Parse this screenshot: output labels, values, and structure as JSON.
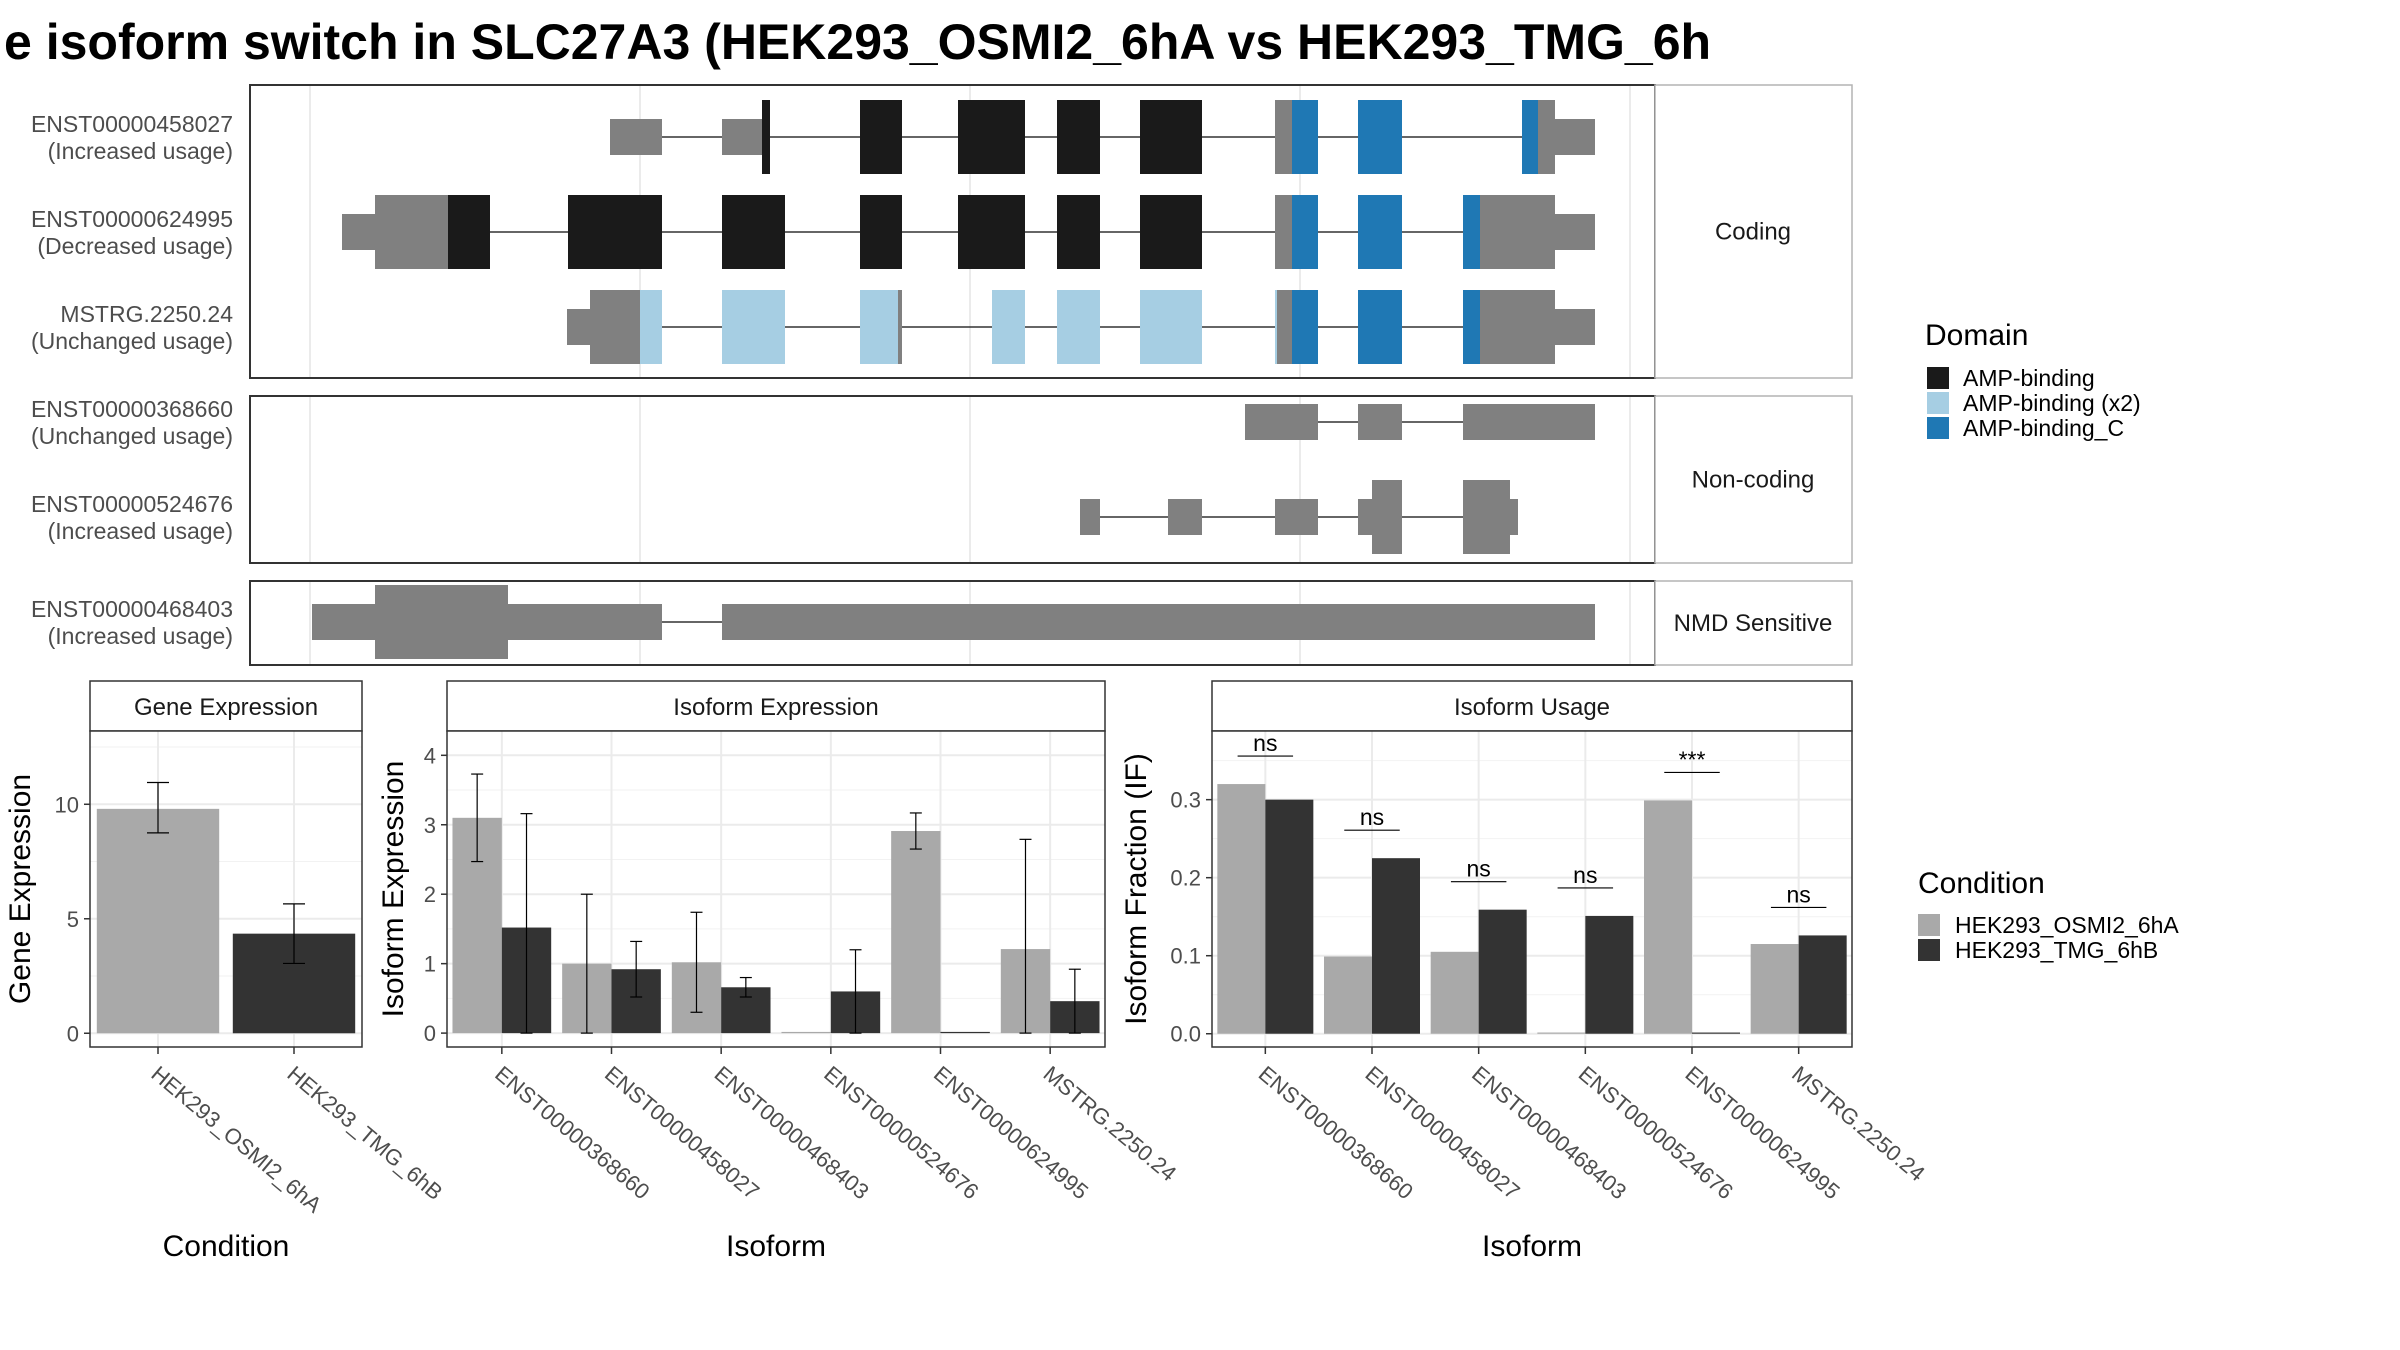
{
  "title": "e isoform switch in SLC27A3 (HEK293_OSMI2_6hA vs HEK293_TMG_6h",
  "colors": {
    "domain_amp_binding": "#1a1a1a",
    "domain_amp_binding_x2": "#a6cee3",
    "domain_amp_binding_c": "#1f78b4",
    "no_domain": "#808080",
    "condition_a": "#a9a9a9",
    "condition_b": "#333333"
  },
  "transcript_panel": {
    "groups": [
      {
        "label": "Coding",
        "transcripts": [
          {
            "id": "ENST00000458027",
            "usage": "(Increased usage)"
          },
          {
            "id": "ENST00000624995",
            "usage": "(Decreased usage)"
          },
          {
            "id": "MSTRG.2250.24",
            "usage": "(Unchanged usage)"
          }
        ]
      },
      {
        "label": "Non-coding",
        "transcripts": [
          {
            "id": "ENST00000368660",
            "usage": "(Unchanged usage)"
          },
          {
            "id": "ENST00000524676",
            "usage": "(Increased usage)"
          }
        ]
      },
      {
        "label": "NMD Sensitive",
        "transcripts": [
          {
            "id": "ENST00000468403",
            "usage": "(Increased usage)"
          }
        ]
      }
    ]
  },
  "domain_legend": {
    "title": "Domain",
    "items": [
      "AMP-binding",
      "AMP-binding (x2)",
      "AMP-binding_C"
    ]
  },
  "condition_legend": {
    "title": "Condition",
    "items": [
      "HEK293_OSMI2_6hA",
      "HEK293_TMG_6hB"
    ]
  },
  "chart_data": [
    {
      "type": "bar",
      "title": "Gene Expression",
      "xlabel": "Condition",
      "ylabel": "Gene Expression",
      "categories": [
        "HEK293_OSMI2_6hA",
        "HEK293_TMG_6hB"
      ],
      "values": [
        9.8,
        4.35
      ],
      "error_low": [
        8.75,
        3.05
      ],
      "error_high": [
        10.95,
        5.65
      ],
      "ylim": [
        -0.6,
        13.2
      ],
      "yticks": [
        0,
        5,
        10
      ],
      "grid": true
    },
    {
      "type": "bar",
      "title": "Isoform Expression",
      "xlabel": "Isoform",
      "ylabel": "Isoform Expression",
      "categories": [
        "ENST00000368660",
        "ENST00000458027",
        "ENST00000468403",
        "ENST00000524676",
        "ENST00000624995",
        "MSTRG.2250.24"
      ],
      "series": [
        {
          "name": "HEK293_OSMI2_6hA",
          "values": [
            3.1,
            1.0,
            1.02,
            0.0,
            2.91,
            1.21
          ],
          "error_low": [
            2.47,
            0.0,
            0.3,
            0.0,
            2.65,
            0.0
          ],
          "error_high": [
            3.73,
            2.0,
            1.74,
            0.0,
            3.17,
            2.79
          ]
        },
        {
          "name": "HEK293_TMG_6hB",
          "values": [
            1.52,
            0.92,
            0.66,
            0.6,
            0.0,
            0.46
          ],
          "error_low": [
            0.0,
            0.52,
            0.52,
            0.0,
            0.0,
            0.0
          ],
          "error_high": [
            3.16,
            1.32,
            0.8,
            1.2,
            0.0,
            0.92
          ]
        }
      ],
      "ylim": [
        -0.2,
        4.35
      ],
      "yticks": [
        0,
        1,
        2,
        3,
        4
      ],
      "grid": true
    },
    {
      "type": "bar",
      "title": "Isoform Usage",
      "xlabel": "Isoform",
      "ylabel": "Isoform Fraction (IF)",
      "categories": [
        "ENST00000368660",
        "ENST00000458027",
        "ENST00000468403",
        "ENST00000524676",
        "ENST00000624995",
        "MSTRG.2250.24"
      ],
      "series": [
        {
          "name": "HEK293_OSMI2_6hA",
          "values": [
            0.32,
            0.099,
            0.105,
            0.0,
            0.299,
            0.115
          ]
        },
        {
          "name": "HEK293_TMG_6hB",
          "values": [
            0.3,
            0.225,
            0.159,
            0.151,
            0.0,
            0.126
          ]
        }
      ],
      "significance": [
        "ns",
        "ns",
        "ns",
        "ns",
        "***",
        "ns"
      ],
      "ylim": [
        -0.017,
        0.388
      ],
      "yticks": [
        0.0,
        0.1,
        0.2,
        0.3
      ],
      "ytick_labels": [
        "0.0",
        "0.1",
        "0.2",
        "0.3"
      ],
      "grid": true
    }
  ]
}
